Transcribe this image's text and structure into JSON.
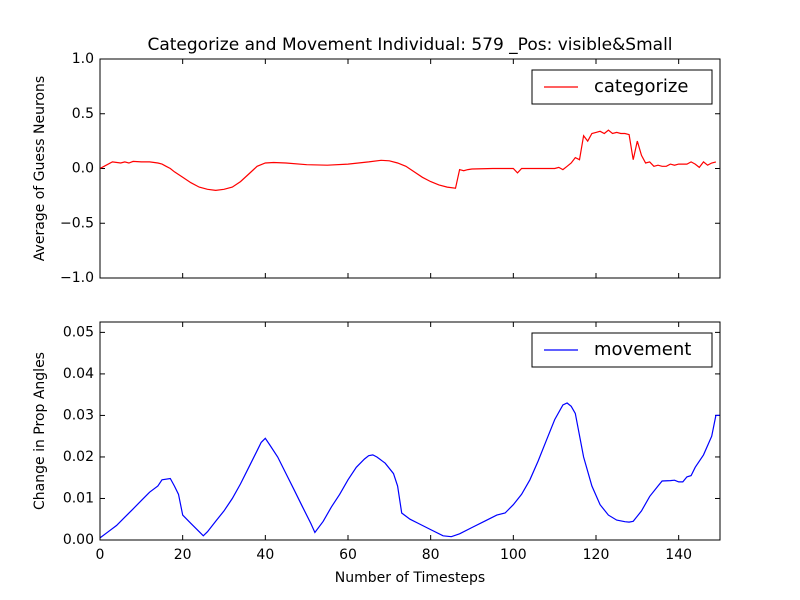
{
  "chart_data": [
    {
      "type": "line",
      "title": "Categorize and Movement Individual: 579 _Pos: visible&Small",
      "y_label": "Average of Guess Neurons",
      "xlim": [
        0,
        150
      ],
      "ylim": [
        -1,
        1
      ],
      "yticks": [
        {
          "value": -1,
          "label": "−1.0"
        },
        {
          "value": -0.5,
          "label": "−0.5"
        },
        {
          "value": 0,
          "label": "0.0"
        },
        {
          "value": 0.5,
          "label": "0.5"
        },
        {
          "value": 1,
          "label": "1.0"
        }
      ],
      "legend": "upper right",
      "x": [
        0,
        1,
        3,
        5,
        6,
        7,
        8,
        10,
        12,
        14,
        15,
        16,
        17,
        18,
        20,
        22,
        24,
        26,
        28,
        30,
        32,
        34,
        36,
        38,
        40,
        42,
        45,
        50,
        55,
        60,
        65,
        68,
        70,
        72,
        74,
        76,
        78,
        80,
        82,
        84,
        86,
        87,
        88,
        89,
        90,
        95,
        100,
        101,
        102,
        105,
        108,
        110,
        111,
        112,
        113,
        114,
        115,
        116,
        117,
        118,
        119,
        120,
        121,
        122,
        123,
        124,
        125,
        126,
        127,
        128,
        129,
        130,
        131,
        132,
        133,
        134,
        135,
        136,
        137,
        138,
        139,
        140,
        141,
        142,
        143,
        144,
        145,
        146,
        147,
        148,
        149
      ],
      "series": [
        {
          "name": "categorize",
          "color": "#ff0000",
          "values": [
            0.0,
            0.02,
            0.06,
            0.05,
            0.06,
            0.05,
            0.065,
            0.06,
            0.06,
            0.05,
            0.04,
            0.02,
            0.0,
            -0.03,
            -0.08,
            -0.13,
            -0.17,
            -0.19,
            -0.2,
            -0.19,
            -0.17,
            -0.12,
            -0.05,
            0.02,
            0.05,
            0.055,
            0.05,
            0.035,
            0.03,
            0.04,
            0.06,
            0.075,
            0.07,
            0.05,
            0.02,
            -0.03,
            -0.08,
            -0.12,
            -0.15,
            -0.17,
            -0.18,
            -0.01,
            -0.02,
            -0.01,
            -0.005,
            0.0,
            0.0,
            -0.04,
            0.0,
            0.0,
            0.0,
            0.0,
            0.01,
            -0.01,
            0.02,
            0.05,
            0.1,
            0.08,
            0.3,
            0.25,
            0.32,
            0.33,
            0.34,
            0.32,
            0.35,
            0.32,
            0.33,
            0.32,
            0.32,
            0.31,
            0.08,
            0.25,
            0.12,
            0.05,
            0.06,
            0.02,
            0.03,
            0.02,
            0.02,
            0.04,
            0.03,
            0.04,
            0.04,
            0.04,
            0.06,
            0.04,
            0.01,
            0.06,
            0.03,
            0.05,
            0.06
          ]
        }
      ]
    },
    {
      "type": "line",
      "x_label": "Number of Timesteps",
      "y_label": "Change in Prop Angles",
      "xlim": [
        0,
        150
      ],
      "xticks": [
        0,
        20,
        40,
        60,
        80,
        100,
        120,
        140
      ],
      "ylim": [
        0,
        0.0525
      ],
      "yticks": [
        {
          "value": 0,
          "label": "0.00"
        },
        {
          "value": 0.01,
          "label": "0.01"
        },
        {
          "value": 0.02,
          "label": "0.02"
        },
        {
          "value": 0.03,
          "label": "0.03"
        },
        {
          "value": 0.04,
          "label": "0.04"
        },
        {
          "value": 0.05,
          "label": "0.05"
        }
      ],
      "legend": "upper right",
      "x": [
        0,
        2,
        4,
        6,
        8,
        10,
        12,
        14,
        15,
        17,
        18,
        19,
        20,
        22,
        24,
        25,
        26,
        28,
        30,
        32,
        34,
        36,
        38,
        39,
        40,
        41,
        43,
        45,
        47,
        49,
        51,
        52,
        54,
        56,
        58,
        60,
        62,
        64,
        65,
        66,
        67,
        69,
        71,
        72,
        73,
        75,
        77,
        80,
        83,
        85,
        87,
        90,
        93,
        96,
        98,
        100,
        102,
        104,
        106,
        108,
        110,
        112,
        113,
        114,
        115,
        117,
        119,
        121,
        123,
        125,
        127,
        128,
        129,
        131,
        133,
        135,
        136,
        138,
        139,
        140,
        141,
        142,
        143,
        144,
        146,
        148,
        149,
        150
      ],
      "series": [
        {
          "name": "movement",
          "color": "#0000ff",
          "values": [
            0.0005,
            0.002,
            0.0035,
            0.0055,
            0.0075,
            0.0095,
            0.0115,
            0.013,
            0.0145,
            0.0148,
            0.013,
            0.011,
            0.006,
            0.004,
            0.002,
            0.001,
            0.002,
            0.0045,
            0.007,
            0.01,
            0.0135,
            0.0175,
            0.0215,
            0.0235,
            0.0245,
            0.023,
            0.02,
            0.016,
            0.012,
            0.008,
            0.004,
            0.0018,
            0.0045,
            0.008,
            0.011,
            0.0145,
            0.0175,
            0.0195,
            0.0203,
            0.0205,
            0.02,
            0.0185,
            0.016,
            0.013,
            0.0065,
            0.005,
            0.004,
            0.0025,
            0.001,
            0.0008,
            0.0015,
            0.003,
            0.0045,
            0.006,
            0.0065,
            0.0085,
            0.011,
            0.0145,
            0.019,
            0.024,
            0.029,
            0.0325,
            0.033,
            0.0322,
            0.0305,
            0.02,
            0.013,
            0.0085,
            0.006,
            0.0048,
            0.0044,
            0.0043,
            0.0045,
            0.007,
            0.0105,
            0.013,
            0.0142,
            0.0143,
            0.0144,
            0.014,
            0.014,
            0.0152,
            0.0155,
            0.0175,
            0.0205,
            0.025,
            0.03,
            0.03
          ]
        }
      ]
    }
  ]
}
